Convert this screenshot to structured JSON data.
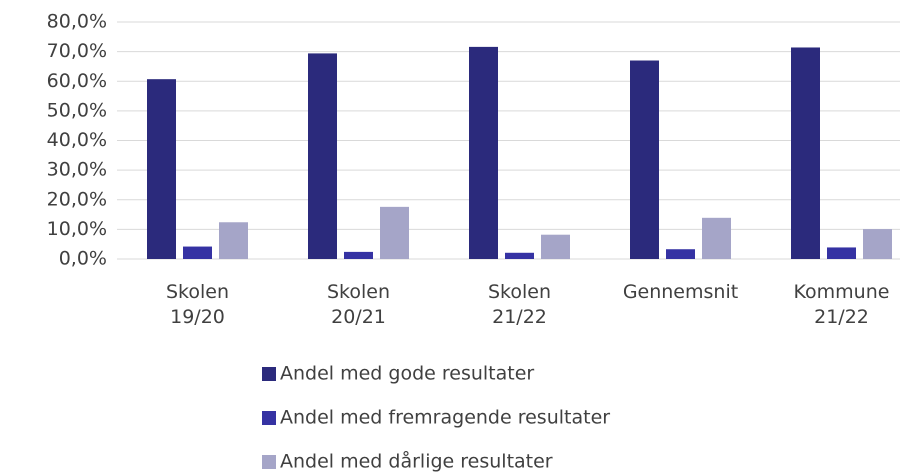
{
  "chart_data": {
    "type": "bar",
    "categories": [
      "Skolen\n19/20",
      "Skolen\n20/21",
      "Skolen\n21/22",
      "Gennemsnit",
      "Kommune\n21/22"
    ],
    "series": [
      {
        "name": "Andel med gode resultater",
        "color": "#2b2a7c",
        "values": [
          60.7,
          69.4,
          71.6,
          67.0,
          71.4
        ]
      },
      {
        "name": "Andel med fremragende resultater",
        "color": "#3532a3",
        "values": [
          4.2,
          2.4,
          2.1,
          3.3,
          3.9
        ]
      },
      {
        "name": "Andel med dårlige resultater",
        "color": "#a5a5c8",
        "values": [
          12.4,
          17.6,
          8.2,
          13.9,
          10.1
        ]
      }
    ],
    "ylim": [
      0,
      80
    ],
    "yticks": [
      {
        "value": 0,
        "label": "0,0%"
      },
      {
        "value": 10,
        "label": "10,0%"
      },
      {
        "value": 20,
        "label": "20,0%"
      },
      {
        "value": 30,
        "label": "30,0%"
      },
      {
        "value": 40,
        "label": "40,0%"
      },
      {
        "value": 50,
        "label": "50,0%"
      },
      {
        "value": 60,
        "label": "60,0%"
      },
      {
        "value": 70,
        "label": "70,0%"
      },
      {
        "value": 80,
        "label": "80,0%"
      }
    ],
    "grid": true,
    "legend": "bottom"
  }
}
